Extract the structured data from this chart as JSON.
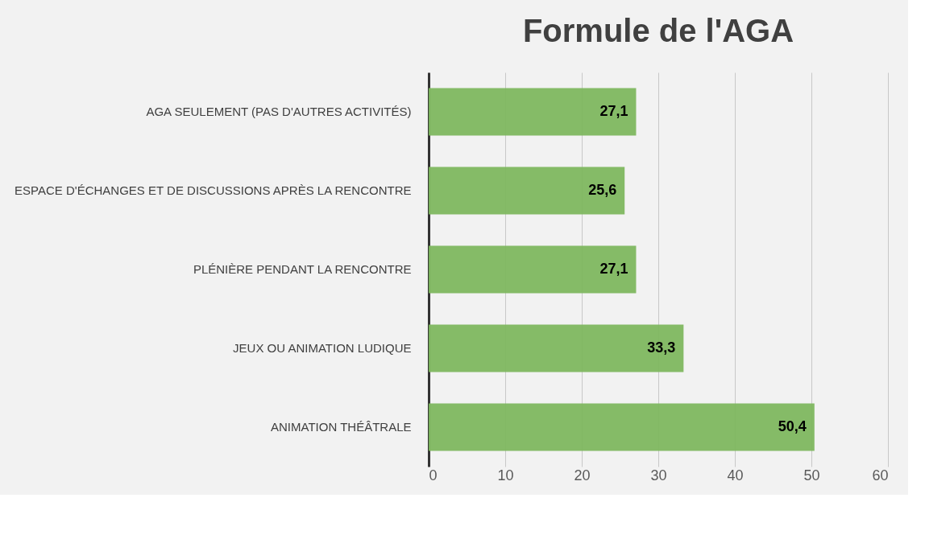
{
  "chart_data": {
    "type": "bar",
    "orientation": "horizontal",
    "title": "Formule de l'AGA",
    "categories": [
      "AGA SEULEMENT (PAS D'AUTRES ACTIVITÉS)",
      "ESPACE D'ÉCHANGES ET DE DISCUSSIONS APRÈS LA RENCONTRE",
      "PLÉNIÈRE PENDANT LA RENCONTRE",
      "JEUX OU ANIMATION LUDIQUE",
      "ANIMATION THÉÂTRALE"
    ],
    "values": [
      27.1,
      25.6,
      27.1,
      33.3,
      50.4
    ],
    "value_labels": [
      "27,1",
      "25,6",
      "27,1",
      "33,3",
      "50,4"
    ],
    "color": "#7eb75f",
    "xlim": [
      0,
      60
    ],
    "xticks": [
      0,
      10,
      20,
      30,
      40,
      50,
      60
    ],
    "grid": "x"
  }
}
